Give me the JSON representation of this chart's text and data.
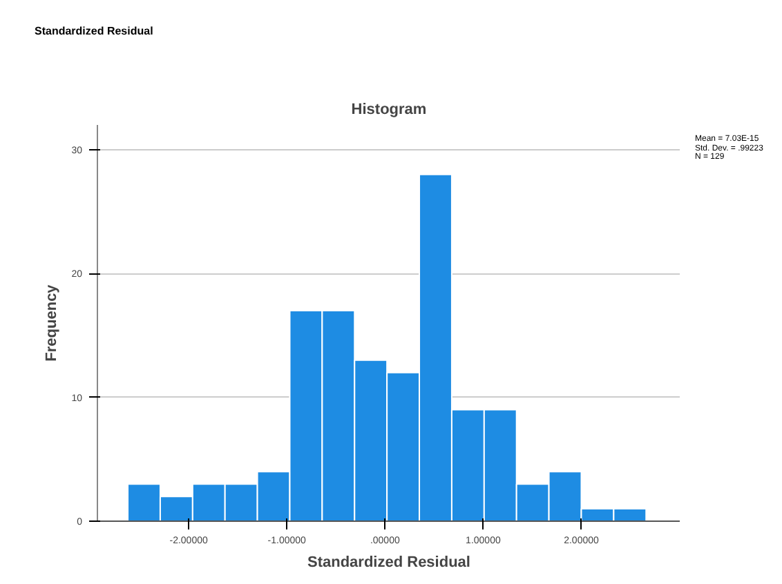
{
  "chart_data": {
    "type": "histogram",
    "title": "Histogram",
    "xlabel": "Standardized Residual",
    "ylabel": "Frequency",
    "annotations": [
      "Standardized Residual",
      "Mean = 7.03E-15\nStd. Dev. = .99223\nN = 129"
    ],
    "bins": [
      -2.62,
      -2.29,
      -1.96,
      -1.63,
      -1.3,
      -0.97,
      -0.64,
      -0.31,
      0.02,
      0.35,
      0.68,
      1.01,
      1.34,
      1.67,
      2.0,
      2.33,
      2.66
    ],
    "values": [
      3,
      2,
      3,
      3,
      4,
      17,
      17,
      13,
      12,
      28,
      9,
      9,
      3,
      4,
      1,
      1
    ],
    "color": "#1e8ce3",
    "xlim": [
      -2.93,
      3.01
    ],
    "ylim": [
      0,
      32
    ],
    "xticks": [
      {
        "value": -2,
        "label": "-2.00000"
      },
      {
        "value": -1,
        "label": "-1.00000"
      },
      {
        "value": 0,
        "label": ".00000"
      },
      {
        "value": 1,
        "label": "1.00000"
      },
      {
        "value": 2,
        "label": "2.00000"
      }
    ],
    "yticks": [
      0,
      10,
      20,
      30
    ],
    "grid": "y"
  }
}
